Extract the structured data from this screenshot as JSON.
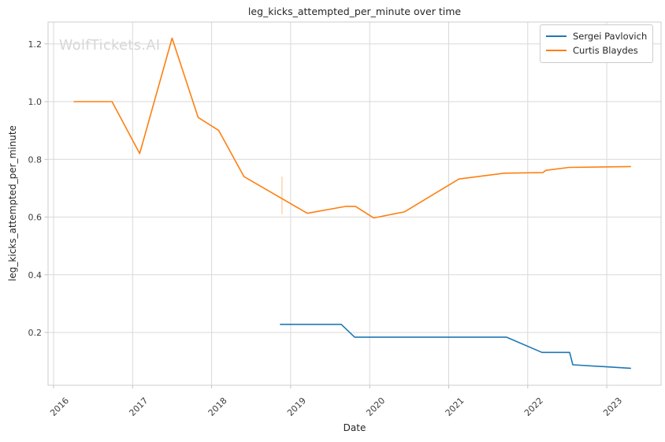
{
  "watermark": "WolfTickets.AI",
  "chart_data": {
    "type": "line",
    "title": "leg_kicks_attempted_per_minute over time",
    "xlabel": "Date",
    "ylabel": "leg_kicks_attempted_per_minute",
    "x_unit": "decimal_year",
    "x_ticks": [
      2016,
      2017,
      2018,
      2019,
      2020,
      2021,
      2022,
      2023
    ],
    "y_ticks": [
      0.2,
      0.4,
      0.6,
      0.8,
      1.0,
      1.2
    ],
    "xlim": [
      2015.93,
      2023.69
    ],
    "ylim": [
      0.02,
      1.28
    ],
    "grid": true,
    "legend_position": "upper-right",
    "series": [
      {
        "name": "Sergei Pavlovich",
        "color": "#1f77b4",
        "points": [
          [
            2018.87,
            0.228
          ],
          [
            2019.64,
            0.228
          ],
          [
            2019.81,
            0.184
          ],
          [
            2021.73,
            0.184
          ],
          [
            2022.18,
            0.131
          ],
          [
            2022.53,
            0.131
          ],
          [
            2022.57,
            0.088
          ],
          [
            2023.3,
            0.076
          ]
        ]
      },
      {
        "name": "Curtis Blaydes",
        "color": "#ff7f0e",
        "points": [
          [
            2016.26,
            1.0
          ],
          [
            2016.74,
            1.0
          ],
          [
            2017.09,
            0.82
          ],
          [
            2017.5,
            1.22
          ],
          [
            2017.83,
            0.945
          ],
          [
            2018.09,
            0.9
          ],
          [
            2018.41,
            0.74
          ],
          [
            2019.21,
            0.613
          ],
          [
            2019.7,
            0.637
          ],
          [
            2019.82,
            0.637
          ],
          [
            2020.05,
            0.597
          ],
          [
            2020.44,
            0.618
          ],
          [
            2021.13,
            0.732
          ],
          [
            2021.7,
            0.752
          ],
          [
            2022.19,
            0.754
          ],
          [
            2022.23,
            0.762
          ],
          [
            2022.52,
            0.772
          ],
          [
            2023.3,
            0.775
          ]
        ]
      }
    ],
    "annotations": [
      {
        "type": "vline-segment",
        "x": 2018.89,
        "y_from": 0.61,
        "y_to": 0.74,
        "color": "#ff7f0e",
        "opacity": 0.35
      }
    ]
  }
}
